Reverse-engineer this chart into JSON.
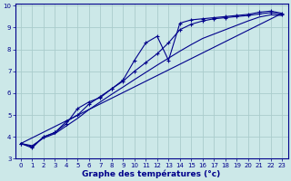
{
  "xlabel": "Graphe des températures (°c)",
  "bg_color": "#cce8e8",
  "grid_color": "#aacccc",
  "line_color": "#00008b",
  "xlim": [
    -0.5,
    23.5
  ],
  "ylim": [
    3,
    10.1
  ],
  "xticks": [
    0,
    1,
    2,
    3,
    4,
    5,
    6,
    7,
    8,
    9,
    10,
    11,
    12,
    13,
    14,
    15,
    16,
    17,
    18,
    19,
    20,
    21,
    22,
    23
  ],
  "yticks": [
    3,
    4,
    5,
    6,
    7,
    8,
    9,
    10
  ],
  "line1_x": [
    0,
    1,
    2,
    3,
    4,
    5,
    6,
    7,
    8,
    9,
    10,
    11,
    12,
    13,
    14,
    15,
    16,
    17,
    18,
    19,
    20,
    21,
    22,
    23
  ],
  "line1_y": [
    3.7,
    3.5,
    4.0,
    4.2,
    4.6,
    5.3,
    5.6,
    5.8,
    6.2,
    6.6,
    7.5,
    8.3,
    8.6,
    7.5,
    9.2,
    9.35,
    9.4,
    9.45,
    9.5,
    9.55,
    9.6,
    9.7,
    9.75,
    9.65
  ],
  "line2_x": [
    0,
    1,
    2,
    3,
    4,
    5,
    6,
    7,
    8,
    9,
    10,
    11,
    12,
    13,
    14,
    15,
    16,
    17,
    18,
    19,
    20,
    21,
    22,
    23
  ],
  "line2_y": [
    3.7,
    3.55,
    4.0,
    4.2,
    4.7,
    5.0,
    5.5,
    5.85,
    6.2,
    6.55,
    7.0,
    7.4,
    7.8,
    8.3,
    8.9,
    9.15,
    9.3,
    9.4,
    9.45,
    9.5,
    9.55,
    9.62,
    9.68,
    9.6
  ],
  "line3_x": [
    0,
    23
  ],
  "line3_y": [
    3.7,
    9.65
  ],
  "line4_x": [
    0,
    1,
    2,
    3,
    4,
    5,
    6,
    7,
    8,
    9,
    10,
    11,
    12,
    13,
    14,
    15,
    16,
    17,
    18,
    19,
    20,
    21,
    22,
    23
  ],
  "line4_y": [
    3.7,
    3.6,
    3.95,
    4.15,
    4.5,
    4.85,
    5.25,
    5.6,
    5.95,
    6.28,
    6.62,
    6.95,
    7.28,
    7.6,
    7.92,
    8.22,
    8.5,
    8.7,
    8.9,
    9.1,
    9.3,
    9.48,
    9.58,
    9.55
  ]
}
